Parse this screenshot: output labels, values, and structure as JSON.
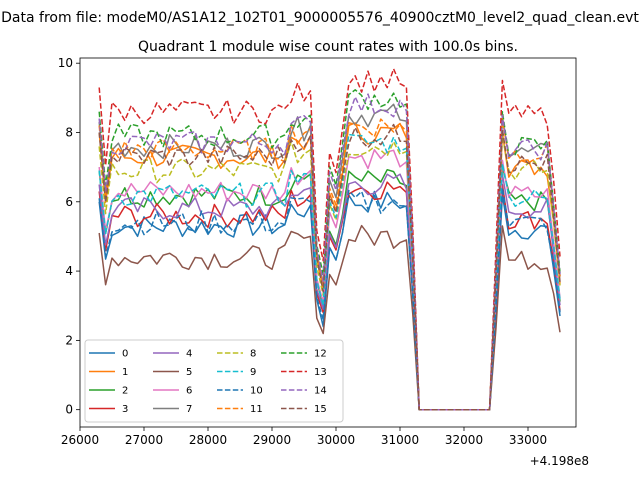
{
  "figure": {
    "suptitle": "Data from file: modeM0/AS1A12_102T01_9000005576_40900cztM0_level2_quad_clean.evt"
  },
  "chart_data": {
    "type": "line",
    "title": "Quadrant 1 module wise count rates with 100.0s bins.",
    "xlabel": "",
    "ylabel": "",
    "x_offset_label": "+4.198e8",
    "xlim": [
      26000,
      33750
    ],
    "ylim": [
      -0.5,
      10.15
    ],
    "x_ticks": [
      26000,
      27000,
      28000,
      29000,
      30000,
      31000,
      32000,
      33000
    ],
    "x_tick_labels": [
      "26000",
      "27000",
      "28000",
      "29000",
      "30000",
      "31000",
      "32000",
      "33000"
    ],
    "y_ticks": [
      0,
      2,
      4,
      6,
      8,
      10
    ],
    "y_tick_labels": [
      "0",
      "2",
      "4",
      "6",
      "8",
      "10"
    ],
    "legend_position": "lower-left",
    "legend_columns": 4,
    "x_segments": [
      {
        "start": 26300,
        "end": 31300,
        "step": 100
      },
      {
        "start": 31300,
        "end": 32400,
        "step": 100
      },
      {
        "start": 32500,
        "end": 33500,
        "step": 100
      }
    ],
    "series": [
      {
        "name": "0",
        "color": "#1f77b4",
        "dash": "solid",
        "base1": 5.3,
        "dip": 2.4,
        "base2": 6.0,
        "base3": 5.2
      },
      {
        "name": "1",
        "color": "#ff7f0e",
        "dash": "solid",
        "base1": 7.3,
        "dip": 3.5,
        "base2": 8.0,
        "base3": 7.0
      },
      {
        "name": "2",
        "color": "#2ca02c",
        "dash": "solid",
        "base1": 6.2,
        "dip": 3.0,
        "base2": 6.6,
        "base3": 6.0
      },
      {
        "name": "3",
        "color": "#d62728",
        "dash": "solid",
        "base1": 5.6,
        "dip": 2.8,
        "base2": 6.4,
        "base3": 5.5
      },
      {
        "name": "4",
        "color": "#9467bd",
        "dash": "solid",
        "base1": 5.8,
        "dip": 2.9,
        "base2": 6.5,
        "base3": 5.8
      },
      {
        "name": "5",
        "color": "#8c564b",
        "dash": "solid",
        "base1": 4.4,
        "dip": 2.2,
        "base2": 5.0,
        "base3": 4.3
      },
      {
        "name": "6",
        "color": "#e377c2",
        "dash": "solid",
        "base1": 6.3,
        "dip": 3.1,
        "base2": 7.3,
        "base3": 6.2
      },
      {
        "name": "7",
        "color": "#7f7f7f",
        "dash": "solid",
        "base1": 7.6,
        "dip": 3.6,
        "base2": 8.5,
        "base3": 7.4
      },
      {
        "name": "8",
        "color": "#bcbd22",
        "dash": "dashed",
        "base1": 6.9,
        "dip": 3.3,
        "base2": 7.6,
        "base3": 6.9
      },
      {
        "name": "9",
        "color": "#17becf",
        "dash": "dashed",
        "base1": 6.2,
        "dip": 3.0,
        "base2": 7.7,
        "base3": 6.1
      },
      {
        "name": "10",
        "color": "#1f77b4",
        "dash": "dashed",
        "base1": 5.4,
        "dip": 2.6,
        "base2": 6.0,
        "base3": 5.4
      },
      {
        "name": "11",
        "color": "#ff7f0e",
        "dash": "dashed",
        "base1": 7.5,
        "dip": 3.6,
        "base2": 8.2,
        "base3": 7.4
      },
      {
        "name": "12",
        "color": "#2ca02c",
        "dash": "dashed",
        "base1": 7.9,
        "dip": 3.9,
        "base2": 9.0,
        "base3": 7.6
      },
      {
        "name": "13",
        "color": "#d62728",
        "dash": "dashed",
        "base1": 8.6,
        "dip": 4.3,
        "base2": 9.5,
        "base3": 8.5
      },
      {
        "name": "14",
        "color": "#9467bd",
        "dash": "dashed",
        "base1": 7.7,
        "dip": 3.7,
        "base2": 8.8,
        "base3": 7.5
      },
      {
        "name": "15",
        "color": "#8c564b",
        "dash": "dashed",
        "base1": 7.3,
        "dip": 3.4,
        "base2": 7.9,
        "base3": 7.1
      }
    ]
  }
}
